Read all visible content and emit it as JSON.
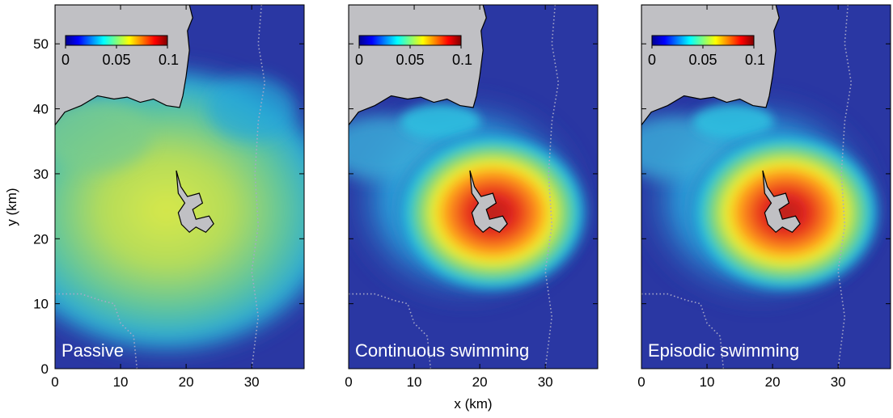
{
  "figure": {
    "xlabel": "x (km)",
    "ylabel": "y (km)"
  },
  "chart_data": {
    "type": "heatmap",
    "shared_axes": {
      "xlim": [
        0,
        38
      ],
      "ylim": [
        0,
        56
      ],
      "xticks": [
        0,
        10,
        20,
        30
      ],
      "yticks": [
        0,
        10,
        20,
        30,
        40,
        50
      ],
      "grid": false
    },
    "colorbar": {
      "colormap": "jet",
      "range": [
        0,
        0.1
      ],
      "ticks": [
        "0",
        "0.05",
        "0.1"
      ],
      "location": "top-left (inset)"
    },
    "panels": [
      {
        "name": "Passive",
        "peak_value": 0.065,
        "peak_center": [
          17,
          25
        ],
        "spread": "broad"
      },
      {
        "name": "Continuous swimming",
        "peak_value": 0.1,
        "peak_center": [
          22,
          24
        ],
        "spread": "concentrated"
      },
      {
        "name": "Episodic swimming",
        "peak_value": 0.1,
        "peak_center": [
          22,
          24
        ],
        "spread": "concentrated"
      }
    ],
    "colors": {
      "background_low": "#2a37a3",
      "land": "#c0c0c4",
      "coastline": "#000000",
      "contour_dotted": "#a8a8c8"
    }
  }
}
